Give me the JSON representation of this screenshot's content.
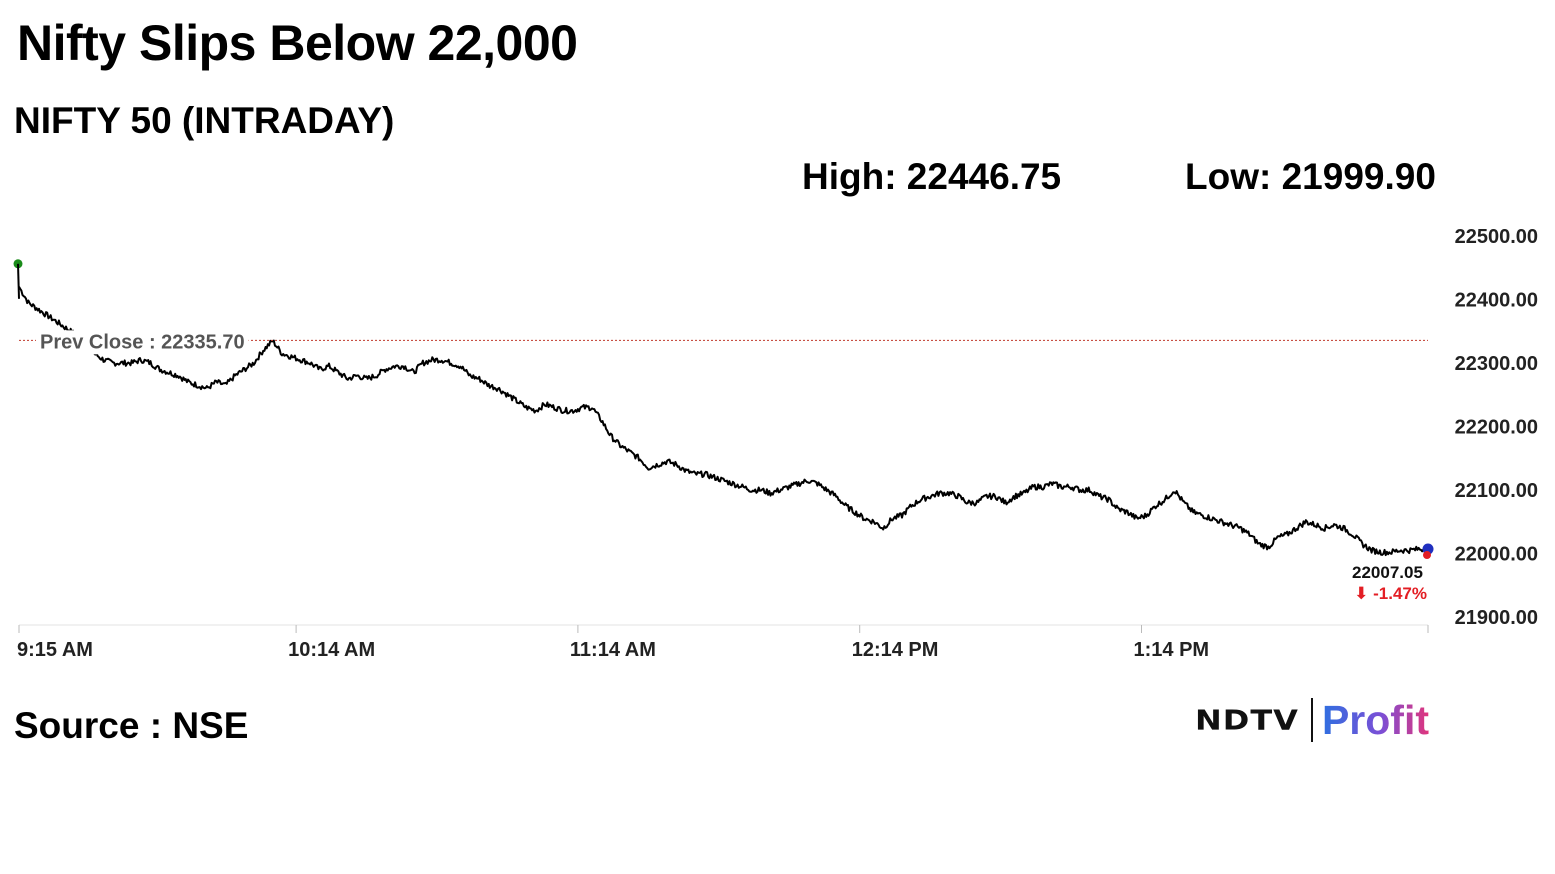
{
  "headline": "Nifty Slips Below 22,000",
  "subtitle": "NIFTY 50 (INTRADAY)",
  "high": "High: 22446.75",
  "low": "Low: 21999.90",
  "source": "Source : NSE",
  "logo": {
    "ndtv": "NDTV",
    "profit": "Profit"
  },
  "colors": {
    "line": "#000000",
    "prev_close": "#c0392b",
    "open_dot": "#1a8c1a",
    "last_dot_a": "#1f2fbf",
    "last_dot_b": "#e31e24",
    "change": "#e31e24"
  },
  "chart_data": {
    "type": "line",
    "title": "NIFTY 50 (INTRADAY)",
    "ylim": [
      21900,
      22500
    ],
    "yticks": [
      "22500.00",
      "22400.00",
      "22300.00",
      "22200.00",
      "22100.00",
      "22000.00",
      "21900.00"
    ],
    "ytick_values": [
      22500,
      22400,
      22300,
      22200,
      22100,
      22000,
      21900
    ],
    "xticks": [
      "9:15 AM",
      "10:14 AM",
      "11:14 AM",
      "12:14 PM",
      "1:14 PM"
    ],
    "xtick_minutes": [
      0,
      59,
      119,
      179,
      239
    ],
    "x_max_minutes": 300,
    "prev_close": 22335.7,
    "prev_close_label": "Prev Close : 22335.70",
    "last_value": "22007.05",
    "change_text": "⬇ -1.47%",
    "grid": false,
    "series": [
      {
        "x": [
          0,
          2,
          4,
          6,
          8,
          10,
          12,
          14,
          16,
          18,
          20,
          22,
          24,
          26,
          28,
          30,
          32,
          34,
          36,
          38,
          40,
          42,
          44,
          46,
          48,
          50,
          52,
          54,
          56,
          58,
          60,
          62,
          64,
          66,
          68,
          70,
          72,
          74,
          76,
          78,
          80,
          82,
          84,
          86,
          88,
          90,
          92,
          94,
          96,
          98,
          100,
          102,
          104,
          106,
          108,
          110,
          112,
          114,
          116,
          118,
          120,
          122,
          124,
          126,
          128,
          130,
          132,
          134,
          136,
          138,
          140,
          142,
          144,
          146,
          148,
          150,
          152,
          154,
          156,
          158,
          160,
          162,
          164,
          166,
          168,
          170,
          172,
          174,
          176,
          178,
          180,
          182,
          184,
          186,
          188,
          190,
          192,
          194,
          196,
          198,
          200,
          202,
          204,
          206,
          208,
          210,
          212,
          214,
          216,
          218,
          220,
          222,
          224,
          226,
          228,
          230,
          232,
          234,
          236,
          238,
          240,
          242,
          244,
          246,
          248,
          250,
          252,
          254,
          256,
          258,
          260,
          262,
          264,
          266,
          268,
          270,
          272,
          274,
          276,
          278,
          280,
          282,
          284,
          286,
          288,
          290,
          292,
          294,
          296,
          298,
          300
        ],
        "y": [
          22420,
          22395,
          22385,
          22375,
          22365,
          22355,
          22345,
          22330,
          22315,
          22305,
          22300,
          22300,
          22300,
          22305,
          22300,
          22290,
          22285,
          22280,
          22270,
          22265,
          22260,
          22270,
          22265,
          22280,
          22290,
          22300,
          22320,
          22335,
          22315,
          22310,
          22305,
          22300,
          22290,
          22295,
          22285,
          22275,
          22280,
          22275,
          22280,
          22290,
          22295,
          22295,
          22285,
          22300,
          22305,
          22305,
          22300,
          22295,
          22280,
          22275,
          22265,
          22260,
          22250,
          22240,
          22230,
          22225,
          22235,
          22230,
          22225,
          22225,
          22230,
          22230,
          22210,
          22185,
          22170,
          22160,
          22150,
          22135,
          22140,
          22145,
          22140,
          22130,
          22125,
          22125,
          22120,
          22115,
          22110,
          22105,
          22100,
          22100,
          22095,
          22100,
          22105,
          22110,
          22115,
          22110,
          22100,
          22090,
          22075,
          22065,
          22055,
          22050,
          22040,
          22055,
          22060,
          22075,
          22085,
          22090,
          22095,
          22095,
          22090,
          22080,
          22080,
          22090,
          22090,
          22080,
          22090,
          22095,
          22105,
          22105,
          22110,
          22105,
          22105,
          22100,
          22100,
          22090,
          22085,
          22070,
          22065,
          22055,
          22060,
          22075,
          22085,
          22100,
          22080,
          22065,
          22060,
          22055,
          22050,
          22045,
          22040,
          22030,
          22015,
          22010,
          22025,
          22030,
          22040,
          22050,
          22045,
          22040,
          22045,
          22040,
          22030,
          22015,
          22005,
          22002,
          22002,
          22005,
          22005,
          22007,
          22007
        ]
      }
    ]
  }
}
